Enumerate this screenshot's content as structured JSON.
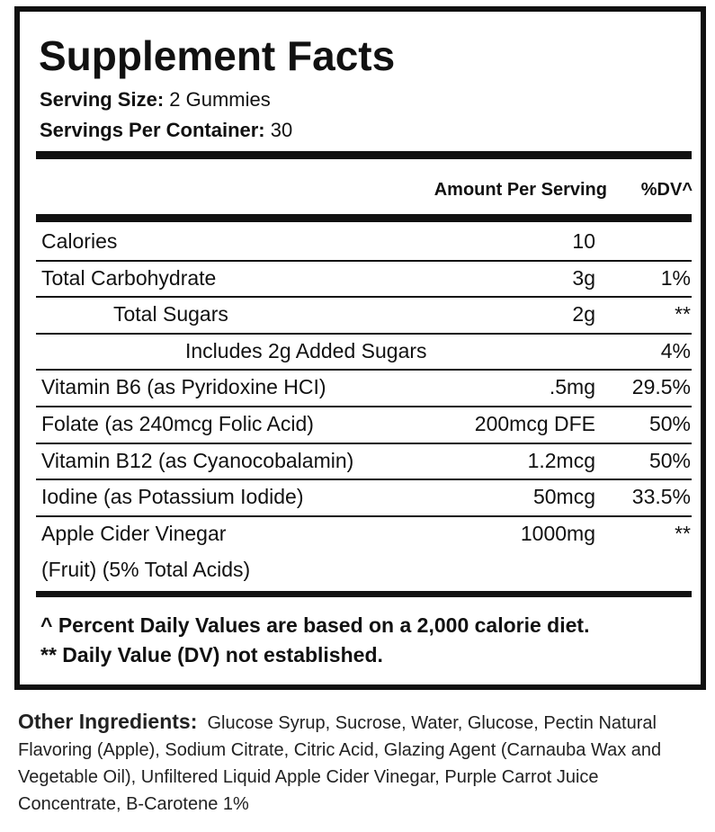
{
  "title": "Supplement Facts",
  "serving_size": {
    "label": "Serving Size:",
    "value": "2 Gummies"
  },
  "servings_per_container": {
    "label": "Servings Per Container:",
    "value": "30"
  },
  "table": {
    "header": {
      "amount": "Amount Per Serving",
      "dv": "%DV^"
    },
    "rows": [
      {
        "name": "Calories",
        "amount": "10"
      },
      {
        "name": "Total Carbohydrate",
        "amount": "3g",
        "dv": "1%"
      },
      {
        "name": "Total Sugars",
        "amount": "2g",
        "dv": "**"
      },
      {
        "name": "Includes 2g Added Sugars",
        "dv": "4%"
      },
      {
        "name": "Vitamin B6 (as Pyridoxine HCI)",
        "amount": ".5mg",
        "dv": "29.5%"
      },
      {
        "name": "Folate (as 240mcg Folic Acid)",
        "amount": "200mcg DFE",
        "dv": "50%"
      },
      {
        "name": "Vitamin B12 (as Cyanocobalamin)",
        "amount": "1.2mcg",
        "dv": "50%"
      },
      {
        "name": "Iodine (as Potassium Iodide)",
        "amount": "50mcg",
        "dv": "33.5%"
      },
      {
        "name": "Apple Cider Vinegar",
        "name_line2": "(Fruit) (5% Total Acids)",
        "amount": "1000mg",
        "dv": "**"
      }
    ]
  },
  "footnotes": [
    "^ Percent Daily Values are based on a 2,000 calorie diet.",
    "** Daily Value (DV) not established."
  ],
  "other_ingredients": {
    "label": "Other Ingredients:",
    "text": "Glucose Syrup, Sucrose, Water, Glucose, Pectin Natural Flavoring (Apple), Sodium Citrate, Citric Acid, Glazing Agent (Carnauba Wax and Vegetable Oil), Unfiltered Liquid Apple Cider Vinegar, Purple Carrot Juice Concentrate, B-Carotene 1%"
  }
}
